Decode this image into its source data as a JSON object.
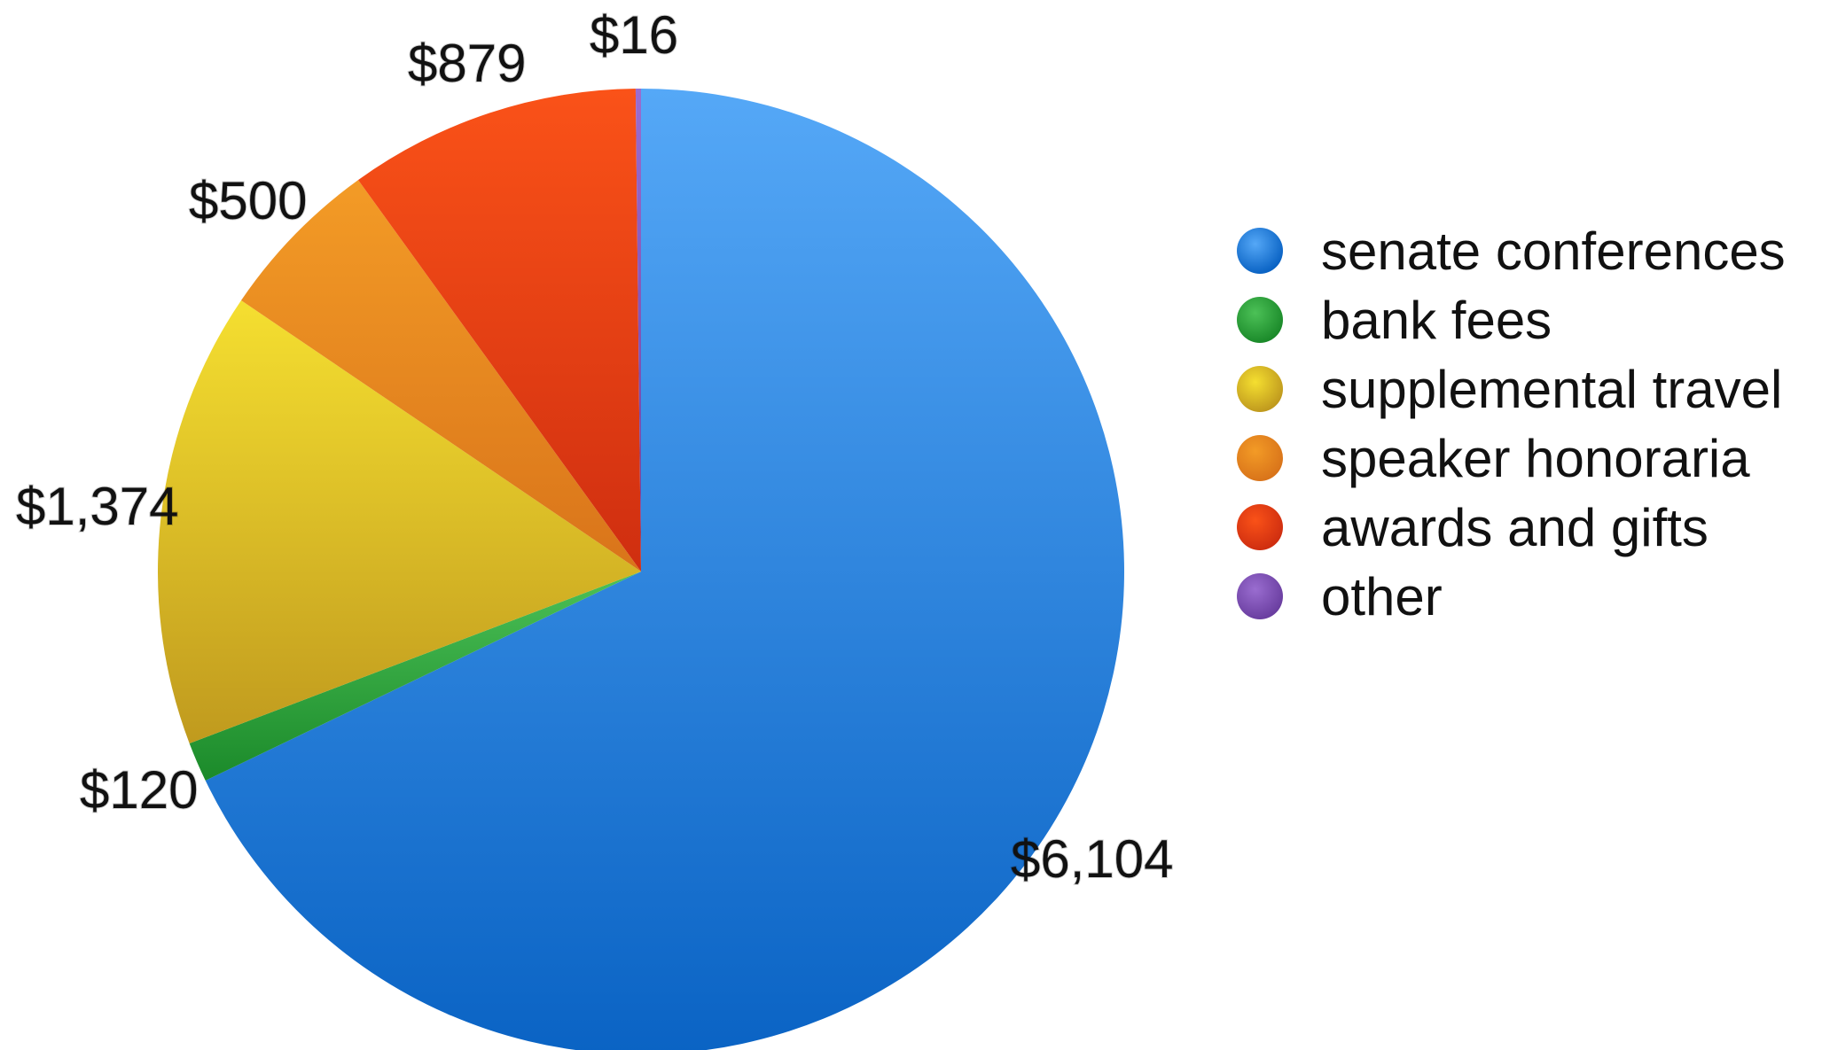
{
  "chart_data": {
    "type": "pie",
    "title": "",
    "legend_position": "right",
    "start_angle_deg": 0,
    "direction": "clockwise",
    "slices": [
      {
        "name": "senate conferences",
        "value": 6104,
        "label": "$6,104",
        "color": "#2f87e6",
        "color_light": "#55a8f7",
        "color_dark": "#0a63c4"
      },
      {
        "name": "bank fees",
        "value": 120,
        "label": "$120",
        "color": "#2aa63a",
        "color_light": "#4cc157",
        "color_dark": "#1b8a2a"
      },
      {
        "name": "supplemental travel",
        "value": 1374,
        "label": "$1,374",
        "color": "#e0c528",
        "color_light": "#f5df30",
        "color_dark": "#c09a1e"
      },
      {
        "name": "speaker honoraria",
        "value": 500,
        "label": "$500",
        "color": "#ec8a1c",
        "color_light": "#f39b26",
        "color_dark": "#d9741a"
      },
      {
        "name": "awards and gifts",
        "value": 879,
        "label": "$879",
        "color": "#ee4716",
        "color_light": "#fa5218",
        "color_dark": "#cf2e10"
      },
      {
        "name": "other",
        "value": 16,
        "label": "$16",
        "color": "#7d4fb3",
        "color_light": "#9a6dd0",
        "color_dark": "#6a3ea0"
      }
    ]
  }
}
